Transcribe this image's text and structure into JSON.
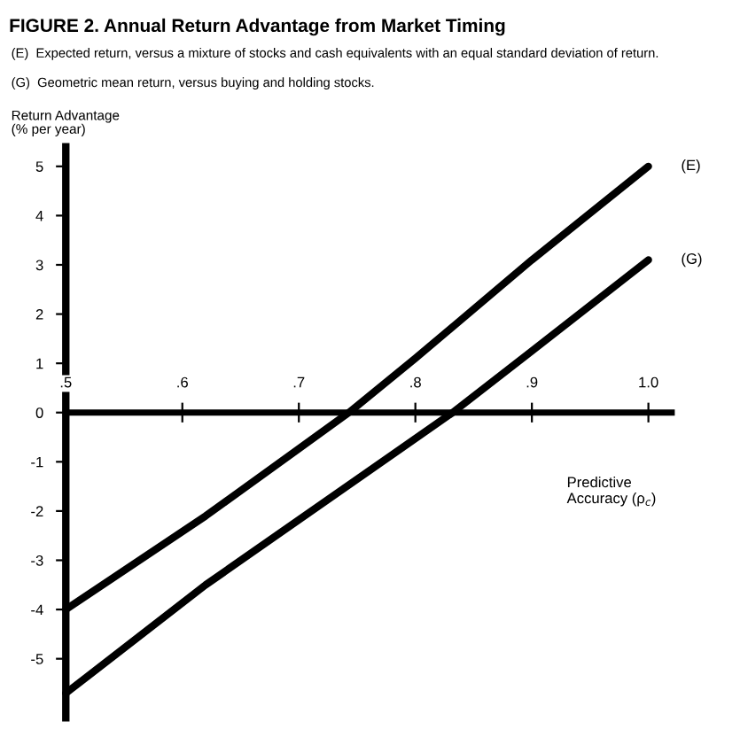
{
  "chart_data": {
    "type": "line",
    "title": "FIGURE 2. Annual Return Advantage from Market Timing",
    "annotations": [
      "(E)  Expected return, versus a mixture of stocks and cash equivalents with an equal standard deviation of return.",
      "(G)  Geometric mean return, versus buying and holding stocks."
    ],
    "ylabel": "Return Advantage\n(% per year)",
    "xlabel": "Predictive\nAccuracy (ρ$_{c}$)",
    "series": [
      {
        "name": "(E)",
        "color": "#000000",
        "x": [
          0.5,
          0.62,
          0.743,
          0.8,
          0.9,
          1.0
        ],
        "values": [
          -4,
          -2.1,
          0,
          1.1,
          3.1,
          5.0
        ]
      },
      {
        "name": "(G)",
        "color": "#000000",
        "x": [
          0.5,
          0.62,
          0.832,
          0.9,
          1.0
        ],
        "values": [
          -5.7,
          -3.5,
          0,
          1.25,
          3.1
        ]
      }
    ],
    "xlim": [
      0.5,
      1.02
    ],
    "xticks": [
      {
        "value": 0.5,
        "label": ".5"
      },
      {
        "value": 0.6,
        "label": ".6"
      },
      {
        "value": 0.7,
        "label": ".7"
      },
      {
        "value": 0.8,
        "label": ".8"
      },
      {
        "value": 0.9,
        "label": ".9"
      },
      {
        "value": 1.0,
        "label": "1.0"
      }
    ],
    "ylim": [
      -6.2,
      5.4
    ],
    "yticks": [
      5,
      4,
      3,
      2,
      1,
      0,
      {
        "value": -1,
        "label": "-1"
      },
      {
        "value": -2,
        "label": "-2"
      },
      {
        "value": -3,
        "label": "-3"
      },
      {
        "value": -4,
        "label": "-4"
      },
      {
        "value": -5,
        "label": "-5"
      }
    ],
    "grid": false,
    "legend": false
  }
}
